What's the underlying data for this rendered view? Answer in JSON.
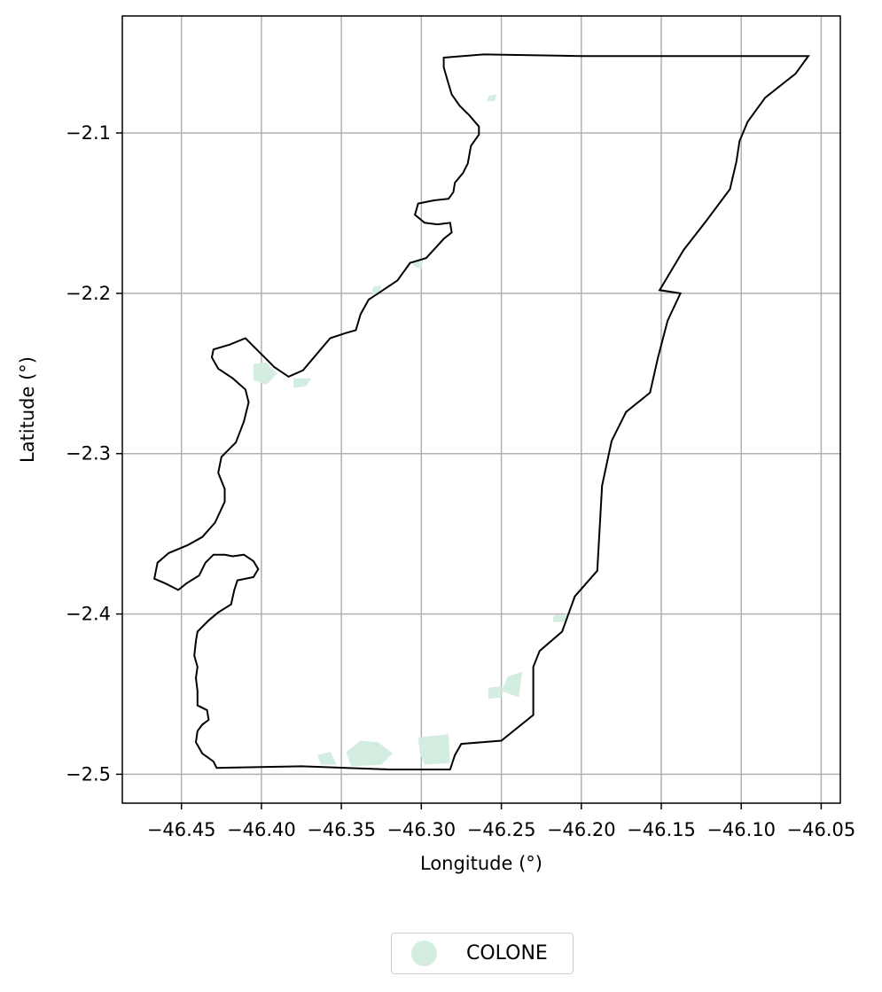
{
  "chart_data": {
    "type": "map",
    "xlabel": "Longitude (°)",
    "ylabel": "Latitude (°)",
    "xlim": [
      -46.487,
      -46.038
    ],
    "ylim": [
      -2.518,
      -2.027
    ],
    "x_ticks": [
      -46.45,
      -46.4,
      -46.35,
      -46.3,
      -46.25,
      -46.2,
      -46.15,
      -46.1,
      -46.05
    ],
    "x_tick_labels": [
      "−46.45",
      "−46.40",
      "−46.35",
      "−46.30",
      "−46.25",
      "−46.20",
      "−46.15",
      "−46.10",
      "−46.05"
    ],
    "y_ticks": [
      -2.1,
      -2.2,
      -2.3,
      -2.4,
      -2.5
    ],
    "y_tick_labels": [
      "−2.1",
      "−2.2",
      "−2.3",
      "−2.4",
      "−2.5"
    ],
    "grid": true,
    "legend": {
      "position": "bottom-center",
      "items": [
        {
          "label": "COLONE",
          "color": "#d4ede1"
        }
      ]
    },
    "boundary": [
      [
        -46.286,
        -2.053
      ],
      [
        -46.261,
        -2.051
      ],
      [
        -46.2,
        -2.052
      ],
      [
        -46.13,
        -2.052
      ],
      [
        -46.058,
        -2.052
      ],
      [
        -46.066,
        -2.063
      ],
      [
        -46.085,
        -2.078
      ],
      [
        -46.096,
        -2.093
      ],
      [
        -46.101,
        -2.105
      ],
      [
        -46.103,
        -2.118
      ],
      [
        -46.107,
        -2.135
      ],
      [
        -46.122,
        -2.155
      ],
      [
        -46.136,
        -2.173
      ],
      [
        -46.151,
        -2.198
      ],
      [
        -46.138,
        -2.2
      ],
      [
        -46.146,
        -2.217
      ],
      [
        -46.152,
        -2.24
      ],
      [
        -46.157,
        -2.262
      ],
      [
        -46.172,
        -2.274
      ],
      [
        -46.181,
        -2.292
      ],
      [
        -46.187,
        -2.32
      ],
      [
        -46.19,
        -2.373
      ],
      [
        -46.204,
        -2.389
      ],
      [
        -46.212,
        -2.411
      ],
      [
        -46.226,
        -2.423
      ],
      [
        -46.23,
        -2.433
      ],
      [
        -46.23,
        -2.463
      ],
      [
        -46.25,
        -2.479
      ],
      [
        -46.275,
        -2.481
      ],
      [
        -46.279,
        -2.488
      ],
      [
        -46.282,
        -2.497
      ],
      [
        -46.32,
        -2.497
      ],
      [
        -46.375,
        -2.495
      ],
      [
        -46.428,
        -2.496
      ],
      [
        -46.43,
        -2.492
      ],
      [
        -46.437,
        -2.487
      ],
      [
        -46.441,
        -2.48
      ],
      [
        -46.44,
        -2.473
      ],
      [
        -46.437,
        -2.469
      ],
      [
        -46.433,
        -2.466
      ],
      [
        -46.434,
        -2.46
      ],
      [
        -46.44,
        -2.457
      ],
      [
        -46.44,
        -2.448
      ],
      [
        -46.441,
        -2.44
      ],
      [
        -46.44,
        -2.433
      ],
      [
        -46.442,
        -2.426
      ],
      [
        -46.441,
        -2.417
      ],
      [
        -46.44,
        -2.411
      ],
      [
        -46.433,
        -2.404
      ],
      [
        -46.427,
        -2.399
      ],
      [
        -46.419,
        -2.394
      ],
      [
        -46.417,
        -2.385
      ],
      [
        -46.415,
        -2.379
      ],
      [
        -46.405,
        -2.377
      ],
      [
        -46.402,
        -2.372
      ],
      [
        -46.405,
        -2.367
      ],
      [
        -46.411,
        -2.363
      ],
      [
        -46.418,
        -2.364
      ],
      [
        -46.423,
        -2.363
      ],
      [
        -46.43,
        -2.363
      ],
      [
        -46.435,
        -2.368
      ],
      [
        -46.439,
        -2.376
      ],
      [
        -46.447,
        -2.381
      ],
      [
        -46.452,
        -2.385
      ],
      [
        -46.46,
        -2.381
      ],
      [
        -46.467,
        -2.378
      ],
      [
        -46.465,
        -2.368
      ],
      [
        -46.458,
        -2.362
      ],
      [
        -46.446,
        -2.357
      ],
      [
        -46.437,
        -2.352
      ],
      [
        -46.429,
        -2.343
      ],
      [
        -46.423,
        -2.33
      ],
      [
        -46.423,
        -2.322
      ],
      [
        -46.427,
        -2.312
      ],
      [
        -46.425,
        -2.302
      ],
      [
        -46.416,
        -2.293
      ],
      [
        -46.411,
        -2.28
      ],
      [
        -46.408,
        -2.268
      ],
      [
        -46.41,
        -2.26
      ],
      [
        -46.418,
        -2.253
      ],
      [
        -46.427,
        -2.247
      ],
      [
        -46.431,
        -2.24
      ],
      [
        -46.43,
        -2.235
      ],
      [
        -46.42,
        -2.232
      ],
      [
        -46.41,
        -2.228
      ],
      [
        -46.405,
        -2.233
      ],
      [
        -46.398,
        -2.24
      ],
      [
        -46.392,
        -2.246
      ],
      [
        -46.383,
        -2.252
      ],
      [
        -46.374,
        -2.248
      ],
      [
        -46.363,
        -2.235
      ],
      [
        -46.357,
        -2.228
      ],
      [
        -46.348,
        -2.225
      ],
      [
        -46.341,
        -2.223
      ],
      [
        -46.338,
        -2.213
      ],
      [
        -46.333,
        -2.204
      ],
      [
        -46.327,
        -2.2
      ],
      [
        -46.315,
        -2.192
      ],
      [
        -46.307,
        -2.181
      ],
      [
        -46.297,
        -2.178
      ],
      [
        -46.286,
        -2.166
      ],
      [
        -46.281,
        -2.162
      ],
      [
        -46.282,
        -2.156
      ],
      [
        -46.29,
        -2.157
      ],
      [
        -46.298,
        -2.156
      ],
      [
        -46.304,
        -2.151
      ],
      [
        -46.302,
        -2.144
      ],
      [
        -46.292,
        -2.142
      ],
      [
        -46.283,
        -2.141
      ],
      [
        -46.28,
        -2.137
      ],
      [
        -46.279,
        -2.131
      ],
      [
        -46.274,
        -2.125
      ],
      [
        -46.271,
        -2.119
      ],
      [
        -46.269,
        -2.108
      ],
      [
        -46.264,
        -2.101
      ],
      [
        -46.264,
        -2.096
      ],
      [
        -46.27,
        -2.089
      ],
      [
        -46.276,
        -2.083
      ],
      [
        -46.281,
        -2.076
      ],
      [
        -46.284,
        -2.066
      ],
      [
        -46.286,
        -2.059
      ],
      [
        -46.286,
        -2.053
      ]
    ],
    "colone_patches": [
      [
        [
          -46.302,
          -2.477
        ],
        [
          -46.283,
          -2.475
        ],
        [
          -46.282,
          -2.493
        ],
        [
          -46.298,
          -2.494
        ],
        [
          -46.301,
          -2.487
        ]
      ],
      [
        [
          -46.347,
          -2.486
        ],
        [
          -46.338,
          -2.479
        ],
        [
          -46.327,
          -2.48
        ],
        [
          -46.318,
          -2.487
        ],
        [
          -46.325,
          -2.494
        ],
        [
          -46.344,
          -2.495
        ]
      ],
      [
        [
          -46.365,
          -2.488
        ],
        [
          -46.357,
          -2.486
        ],
        [
          -46.353,
          -2.494
        ],
        [
          -46.363,
          -2.494
        ]
      ],
      [
        [
          -46.246,
          -2.439
        ],
        [
          -46.237,
          -2.436
        ],
        [
          -46.239,
          -2.452
        ],
        [
          -46.25,
          -2.448
        ]
      ],
      [
        [
          -46.258,
          -2.446
        ],
        [
          -46.25,
          -2.445
        ],
        [
          -46.25,
          -2.452
        ],
        [
          -46.258,
          -2.453
        ]
      ],
      [
        [
          -46.217,
          -2.401
        ],
        [
          -46.209,
          -2.4
        ],
        [
          -46.21,
          -2.405
        ],
        [
          -46.218,
          -2.405
        ]
      ],
      [
        [
          -46.405,
          -2.244
        ],
        [
          -46.397,
          -2.243
        ],
        [
          -46.39,
          -2.25
        ],
        [
          -46.397,
          -2.257
        ],
        [
          -46.405,
          -2.254
        ]
      ],
      [
        [
          -46.38,
          -2.253
        ],
        [
          -46.369,
          -2.253
        ],
        [
          -46.372,
          -2.258
        ],
        [
          -46.38,
          -2.259
        ]
      ],
      [
        [
          -46.33,
          -2.196
        ],
        [
          -46.325,
          -2.195
        ],
        [
          -46.326,
          -2.201
        ],
        [
          -46.331,
          -2.2
        ]
      ],
      [
        [
          -46.305,
          -2.18
        ],
        [
          -46.299,
          -2.179
        ],
        [
          -46.3,
          -2.185
        ],
        [
          -46.305,
          -2.183
        ]
      ],
      [
        [
          -46.258,
          -2.077
        ],
        [
          -46.253,
          -2.076
        ],
        [
          -46.254,
          -2.08
        ],
        [
          -46.259,
          -2.08
        ]
      ]
    ]
  }
}
